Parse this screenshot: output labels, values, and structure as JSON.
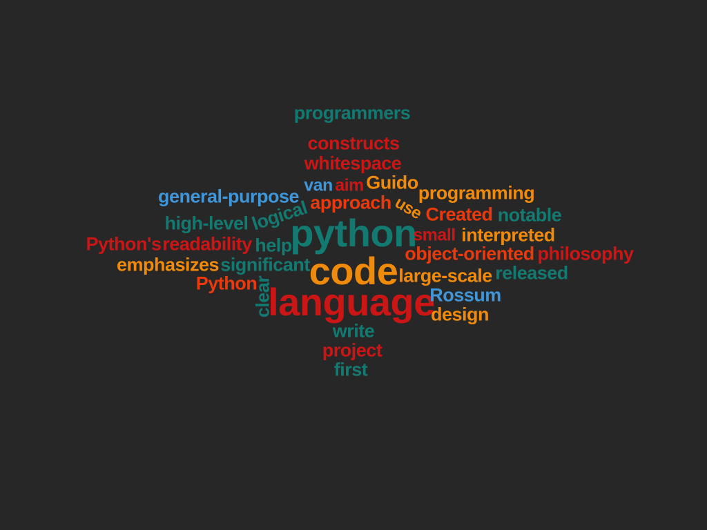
{
  "colors": {
    "background": "#272727",
    "teal": "#137a72",
    "red": "#cc1616",
    "orange": "#f08a0b",
    "red_orange": "#e83a0d",
    "blue": "#3f96d9"
  },
  "words": [
    {
      "text": "programmers",
      "color": "#137a72"
    },
    {
      "text": "constructs",
      "color": "#cc1616"
    },
    {
      "text": "whitespace",
      "color": "#cc1616"
    },
    {
      "text": "van",
      "color": "#3f96d9"
    },
    {
      "text": "aim",
      "color": "#cc1616"
    },
    {
      "text": "Guido",
      "color": "#f08a0b"
    },
    {
      "text": "programming",
      "color": "#f08a0b"
    },
    {
      "text": "general-purpose",
      "color": "#3f96d9"
    },
    {
      "text": "approach",
      "color": "#e83a0d"
    },
    {
      "text": "use",
      "color": "#f08a0b"
    },
    {
      "text": "Created",
      "color": "#e83a0d"
    },
    {
      "text": "notable",
      "color": "#137a72"
    },
    {
      "text": "logical",
      "color": "#137a72"
    },
    {
      "text": "high-level",
      "color": "#137a72"
    },
    {
      "text": "python",
      "color": "#137a72"
    },
    {
      "text": "small",
      "color": "#cc1616"
    },
    {
      "text": "interpreted",
      "color": "#f08a0b"
    },
    {
      "text": "Python's",
      "color": "#cc1616"
    },
    {
      "text": "readability",
      "color": "#cc1616"
    },
    {
      "text": "help",
      "color": "#137a72"
    },
    {
      "text": "object-oriented",
      "color": "#e83a0d"
    },
    {
      "text": "philosophy",
      "color": "#cc1616"
    },
    {
      "text": "emphasizes",
      "color": "#f08a0b"
    },
    {
      "text": "significant",
      "color": "#137a72"
    },
    {
      "text": "code",
      "color": "#f08a0b"
    },
    {
      "text": "large-scale",
      "color": "#f08a0b"
    },
    {
      "text": "released",
      "color": "#137a72"
    },
    {
      "text": "Python",
      "color": "#e83a0d"
    },
    {
      "text": "clear",
      "color": "#137a72"
    },
    {
      "text": "language",
      "color": "#cc1616"
    },
    {
      "text": "Rossum",
      "color": "#3f96d9"
    },
    {
      "text": "design",
      "color": "#f08a0b"
    },
    {
      "text": "write",
      "color": "#137a72"
    },
    {
      "text": "project",
      "color": "#cc1616"
    },
    {
      "text": "first",
      "color": "#137a72"
    }
  ]
}
